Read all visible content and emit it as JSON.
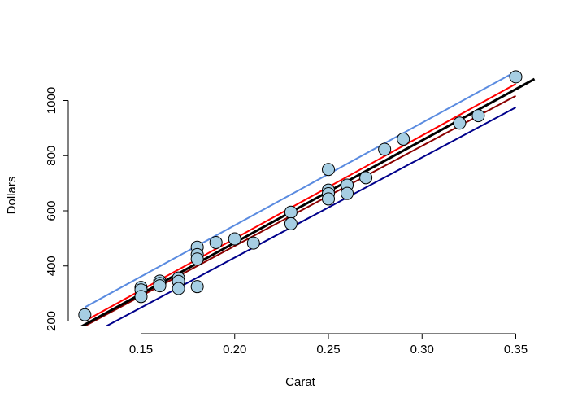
{
  "chart_data": {
    "type": "scatter",
    "title": "",
    "xlabel": "Carat",
    "ylabel": "Dollars",
    "xlim": [
      0.11,
      0.36
    ],
    "ylim": [
      195,
      1115
    ],
    "xticks": [
      "0.15",
      "0.20",
      "0.25",
      "0.30",
      "0.35"
    ],
    "xtick_values": [
      0.15,
      0.2,
      0.25,
      0.3,
      0.35
    ],
    "yticks": [
      "200",
      "400",
      "600",
      "800",
      "1000"
    ],
    "ytick_values": [
      200,
      400,
      600,
      800,
      1000
    ],
    "grid": false,
    "legend": "none",
    "points": {
      "fill": "#a6cee3",
      "stroke": "#000000",
      "values": [
        {
          "x": 0.12,
          "y": 223
        },
        {
          "x": 0.15,
          "y": 322
        },
        {
          "x": 0.15,
          "y": 313
        },
        {
          "x": 0.15,
          "y": 289
        },
        {
          "x": 0.16,
          "y": 345
        },
        {
          "x": 0.16,
          "y": 336
        },
        {
          "x": 0.16,
          "y": 328
        },
        {
          "x": 0.17,
          "y": 356
        },
        {
          "x": 0.17,
          "y": 344
        },
        {
          "x": 0.17,
          "y": 318
        },
        {
          "x": 0.18,
          "y": 468
        },
        {
          "x": 0.18,
          "y": 441
        },
        {
          "x": 0.18,
          "y": 425
        },
        {
          "x": 0.18,
          "y": 325
        },
        {
          "x": 0.19,
          "y": 485
        },
        {
          "x": 0.2,
          "y": 498
        },
        {
          "x": 0.21,
          "y": 483
        },
        {
          "x": 0.23,
          "y": 595
        },
        {
          "x": 0.23,
          "y": 553
        },
        {
          "x": 0.25,
          "y": 750
        },
        {
          "x": 0.25,
          "y": 675
        },
        {
          "x": 0.25,
          "y": 662
        },
        {
          "x": 0.25,
          "y": 643
        },
        {
          "x": 0.26,
          "y": 693
        },
        {
          "x": 0.26,
          "y": 663
        },
        {
          "x": 0.27,
          "y": 720
        },
        {
          "x": 0.28,
          "y": 823
        },
        {
          "x": 0.29,
          "y": 860
        },
        {
          "x": 0.32,
          "y": 918
        },
        {
          "x": 0.33,
          "y": 945
        },
        {
          "x": 0.35,
          "y": 1086
        }
      ]
    },
    "lines": [
      {
        "color": "#5a8be0",
        "width": 2,
        "x": [
          0.12,
          0.35
        ],
        "y": [
          250,
          1105
        ]
      },
      {
        "color": "#ff0000",
        "width": 2,
        "x": [
          0.12,
          0.35
        ],
        "y": [
          200,
          1060
        ]
      },
      {
        "color": "#8b0000",
        "width": 2,
        "x": [
          0.12,
          0.35
        ],
        "y": [
          182,
          1017
        ]
      },
      {
        "color": "#00008b",
        "width": 2,
        "x": [
          0.12,
          0.35
        ],
        "y": [
          140,
          975
        ]
      },
      {
        "color": "#000000",
        "width": 3,
        "x": [
          0.11,
          0.36
        ],
        "y": [
          150,
          1078
        ]
      }
    ]
  }
}
